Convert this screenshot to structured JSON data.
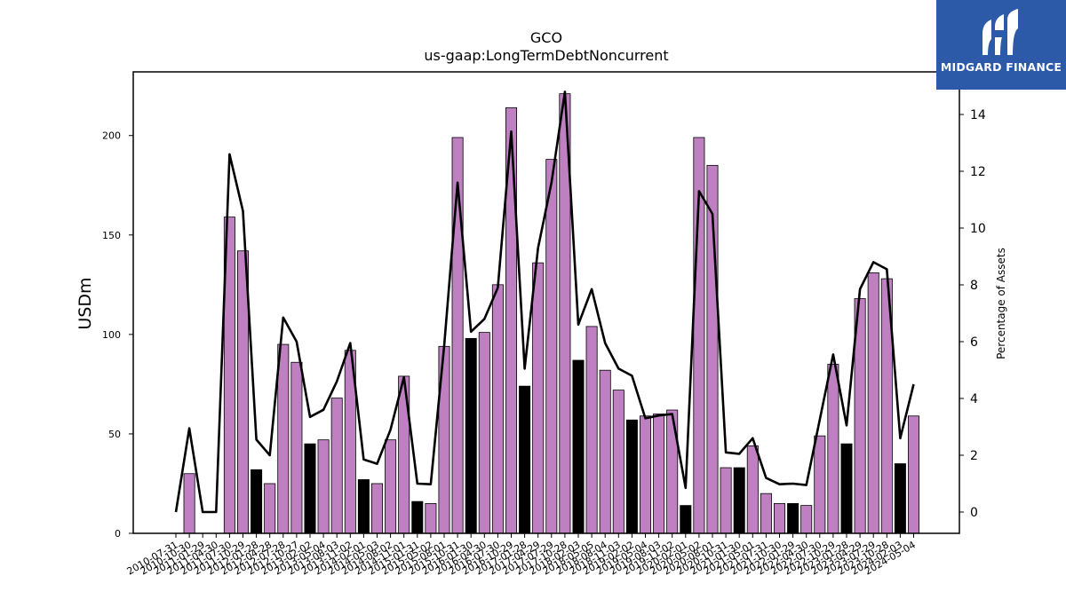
{
  "chart_data": {
    "type": "bar",
    "title": "GCO",
    "subtitle": "us-gaap:LongTermDebtNoncurrent",
    "ylabel": "USDm",
    "y2label": "Percentage of Assets",
    "ylim": [
      0,
      232
    ],
    "y2lim": [
      -0.75,
      15.5
    ],
    "yticks": [
      0,
      50,
      100,
      150,
      200
    ],
    "y2ticks": [
      0,
      2,
      4,
      6,
      8,
      10,
      12,
      14
    ],
    "categories": [
      "2010-07-31",
      "2010-10-30",
      "2011-01-29",
      "2011-04-30",
      "2011-07-30",
      "2011-10-29",
      "2012-01-28",
      "2012-04-28",
      "2012-07-28",
      "2012-10-27",
      "2013-02-02",
      "2013-05-04",
      "2013-08-03",
      "2013-11-02",
      "2014-02-01",
      "2014-05-03",
      "2014-08-02",
      "2014-11-01",
      "2015-01-31",
      "2015-05-02",
      "2015-08-01",
      "2015-10-31",
      "2016-01-30",
      "2016-04-30",
      "2016-07-30",
      "2016-10-29",
      "2017-01-28",
      "2017-04-29",
      "2017-07-29",
      "2017-10-28",
      "2018-02-03",
      "2018-05-05",
      "2018-08-04",
      "2018-11-03",
      "2019-02-02",
      "2019-05-04",
      "2019-08-03",
      "2019-11-02",
      "2020-02-01",
      "2020-05-02",
      "2020-08-01",
      "2020-10-31",
      "2021-01-30",
      "2021-05-01",
      "2021-07-31",
      "2021-10-30",
      "2022-01-29",
      "2022-04-30",
      "2022-07-30",
      "2022-10-29",
      "2023-01-28",
      "2023-04-29",
      "2023-07-29",
      "2023-10-28",
      "2024-02-03",
      "2024-05-04"
    ],
    "series": [
      {
        "values": [
          0,
          30,
          0,
          0,
          159,
          142,
          32,
          25,
          95,
          86,
          45,
          47,
          68,
          92,
          27,
          25,
          47,
          79,
          16,
          15,
          94,
          199,
          98,
          101,
          125,
          214,
          74,
          136,
          188,
          221,
          87,
          104,
          82,
          72,
          57,
          59,
          60,
          62,
          14,
          199,
          185,
          33,
          33,
          44,
          20,
          15,
          15,
          14,
          49,
          85,
          45,
          118,
          131,
          128,
          35,
          59
        ],
        "quarter_end_fiscal_year": [
          false,
          false,
          false,
          false,
          false,
          false,
          true,
          false,
          false,
          false,
          true,
          false,
          false,
          false,
          true,
          false,
          false,
          false,
          true,
          false,
          false,
          false,
          true,
          false,
          false,
          false,
          true,
          false,
          false,
          false,
          true,
          false,
          false,
          false,
          true,
          false,
          false,
          false,
          true,
          false,
          false,
          false,
          true,
          false,
          false,
          false,
          true,
          false,
          false,
          false,
          true,
          false,
          false,
          false,
          true,
          false
        ]
      },
      {
        "axis": "right",
        "type": "line",
        "values": [
          0,
          2.95,
          0,
          0,
          12.6,
          10.6,
          2.55,
          2.0,
          6.85,
          6.0,
          3.35,
          3.6,
          4.6,
          5.95,
          1.85,
          1.7,
          2.9,
          4.75,
          1.0,
          0.98,
          5.85,
          11.6,
          6.35,
          6.8,
          7.9,
          13.4,
          5.05,
          9.3,
          11.6,
          14.8,
          6.6,
          7.85,
          5.95,
          5.05,
          4.8,
          3.3,
          3.4,
          3.45,
          0.85,
          11.3,
          10.5,
          2.1,
          2.05,
          2.6,
          1.2,
          0.98,
          1.0,
          0.95,
          3.25,
          5.55,
          3.05,
          7.85,
          8.8,
          8.55,
          2.6,
          4.5
        ]
      }
    ],
    "colors": {
      "bar": "#bf80c2",
      "bar_fiscal_year_end": "#000000",
      "line": "#000000"
    }
  },
  "logo": {
    "text": "MIDGARD FINANCE",
    "background": "#2c5aa8"
  }
}
